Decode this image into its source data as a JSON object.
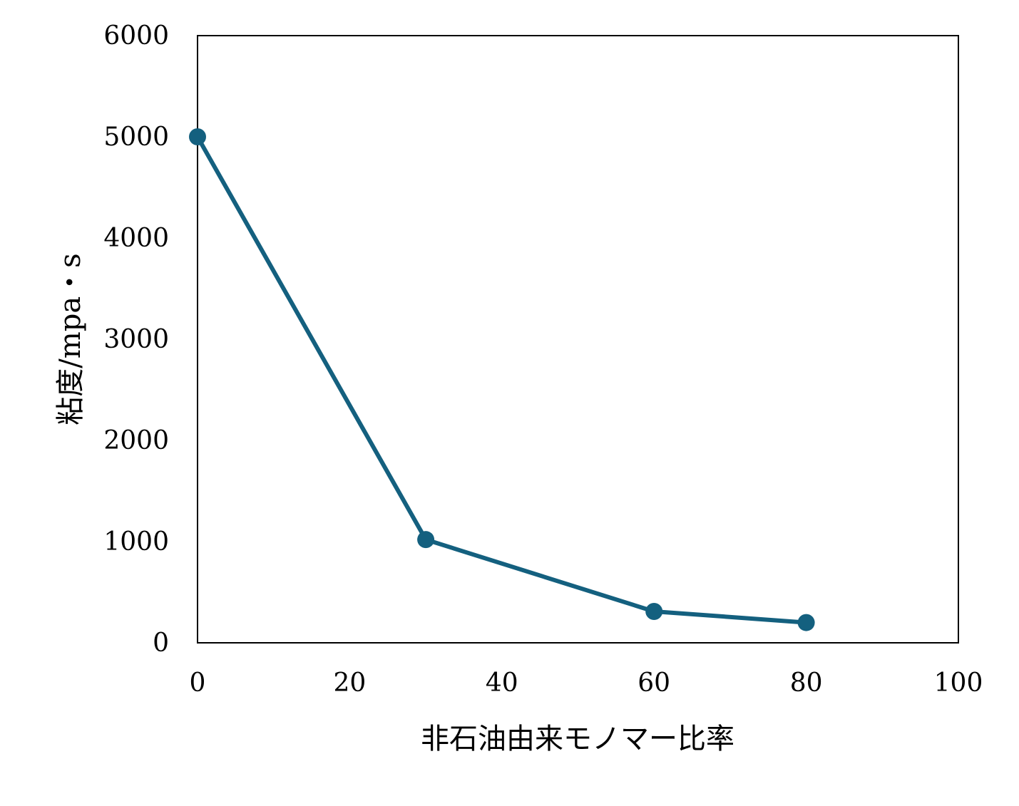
{
  "chart_data": {
    "type": "line",
    "xlabel": "非石油由来モノマー比率",
    "ylabel": "粘度/mpa・s",
    "xlim": [
      0,
      100
    ],
    "ylim": [
      0,
      6000
    ],
    "x_ticks": [
      0,
      20,
      40,
      60,
      80,
      100
    ],
    "y_ticks": [
      0,
      1000,
      2000,
      3000,
      4000,
      5000,
      6000
    ],
    "x_tick_labels": [
      "0",
      "20",
      "40",
      "60",
      "80",
      "100"
    ],
    "y_tick_labels": [
      "0",
      "1000",
      "2000",
      "3000",
      "4000",
      "5000",
      "6000"
    ],
    "grid": false,
    "legend": "none",
    "series": [
      {
        "color": "#14607f",
        "marker": "circle",
        "x": [
          0,
          30,
          60,
          80
        ],
        "y": [
          5000,
          1020,
          310,
          200
        ]
      }
    ]
  }
}
